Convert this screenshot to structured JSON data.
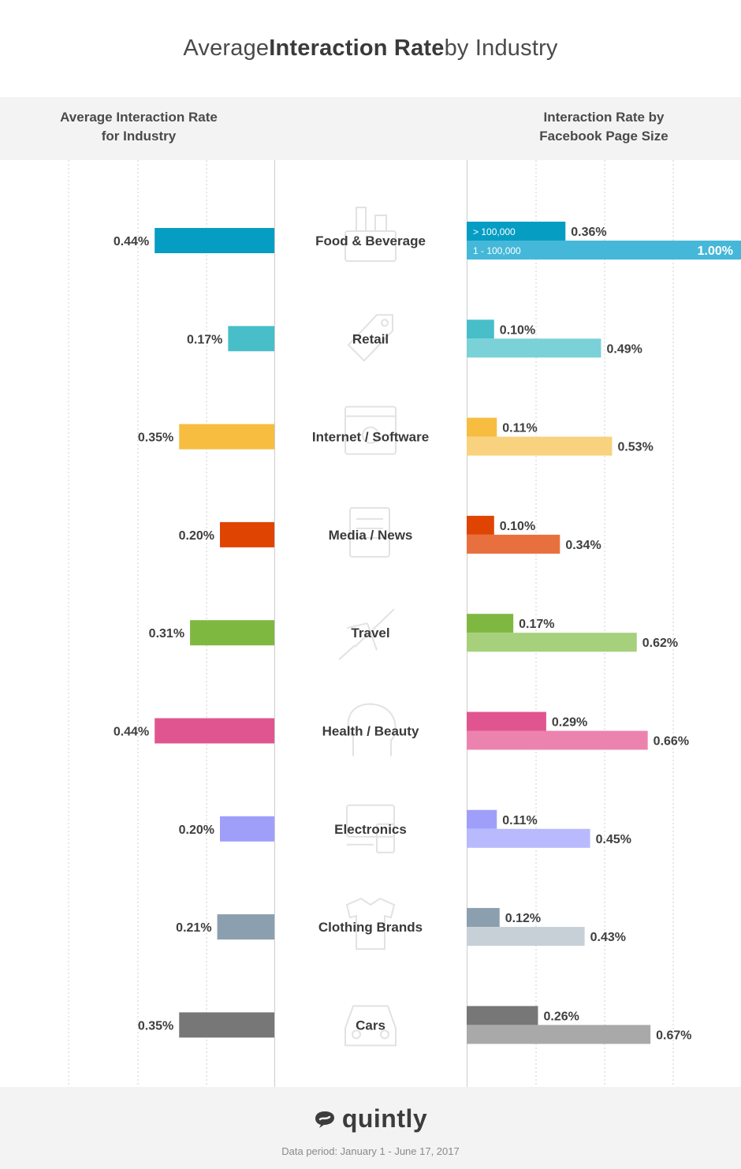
{
  "title": {
    "prefix": "Average ",
    "bold": "Interaction Rate",
    "suffix": " by Industry"
  },
  "headers": {
    "left_line1": "Average Interaction Rate",
    "left_line2": "for Industry",
    "right_line1": "Interaction Rate by",
    "right_line2": "Facebook Page Size"
  },
  "footer": {
    "brand": "quintly",
    "data_period": "Data period: January 1 - June 17, 2017"
  },
  "chart_data": {
    "type": "bar",
    "title": "Average Interaction Rate by Industry",
    "categories": [
      "Food & Beverage",
      "Retail",
      "Internet / Software",
      "Media / News",
      "Travel",
      "Health / Beauty",
      "Electronics",
      "Clothing Brands",
      "Cars"
    ],
    "series": [
      {
        "name": "Average Interaction Rate for Industry",
        "values": [
          0.44,
          0.17,
          0.35,
          0.2,
          0.31,
          0.44,
          0.2,
          0.21,
          0.35
        ],
        "labels": [
          "0.44%",
          "0.17%",
          "0.35%",
          "0.20%",
          "0.31%",
          "0.44%",
          "0.20%",
          "0.21%",
          "0.35%"
        ]
      },
      {
        "name": "> 100,000",
        "values": [
          0.36,
          0.1,
          0.11,
          0.1,
          0.17,
          0.29,
          0.11,
          0.12,
          0.26
        ],
        "labels": [
          "0.36%",
          "0.10%",
          "0.11%",
          "0.10%",
          "0.17%",
          "0.29%",
          "0.11%",
          "0.12%",
          "0.26%"
        ]
      },
      {
        "name": "1 - 100,000",
        "values": [
          1.0,
          0.49,
          0.53,
          0.34,
          0.62,
          0.66,
          0.45,
          0.43,
          0.67
        ],
        "labels": [
          "1.00%",
          "0.49%",
          "0.53%",
          "0.34%",
          "0.62%",
          "0.66%",
          "0.45%",
          "0.43%",
          "0.67%"
        ]
      }
    ],
    "colors": {
      "primary": [
        "#069dc3",
        "#48bec9",
        "#f6bd40",
        "#e04402",
        "#7fb841",
        "#e05590",
        "#9f9ffa",
        "#8b9faf",
        "#777777"
      ],
      "secondary": [
        "#45b8d9",
        "#7ad1d8",
        "#f8d27e",
        "#e8703e",
        "#a6d07c",
        "#ec83ae",
        "#b9b9fd",
        "#c7d0d6",
        "#a9a9a9"
      ]
    },
    "left_xlim": [
      0,
      1.0
    ],
    "right_xlim": [
      0,
      1.0
    ],
    "legend": "inline-first-row"
  }
}
